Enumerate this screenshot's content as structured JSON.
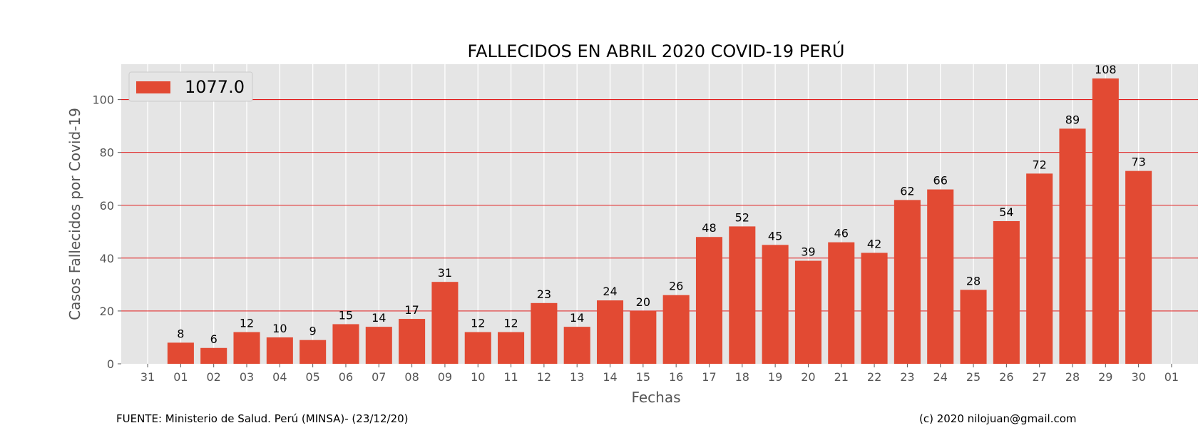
{
  "chart_data": {
    "type": "bar",
    "title": "FALLECIDOS EN ABRIL 2020 COVID-19 PERÚ",
    "xlabel": "Fechas",
    "ylabel": "Casos Fallecidos por Covid-19",
    "categories": [
      "01",
      "02",
      "03",
      "04",
      "05",
      "06",
      "07",
      "08",
      "09",
      "10",
      "11",
      "12",
      "13",
      "14",
      "15",
      "16",
      "17",
      "18",
      "19",
      "20",
      "21",
      "22",
      "23",
      "24",
      "25",
      "26",
      "27",
      "28",
      "29",
      "30"
    ],
    "x_ticks": [
      "31",
      "01",
      "02",
      "03",
      "04",
      "05",
      "06",
      "07",
      "08",
      "09",
      "10",
      "11",
      "12",
      "13",
      "14",
      "15",
      "16",
      "17",
      "18",
      "19",
      "20",
      "21",
      "22",
      "23",
      "24",
      "25",
      "26",
      "27",
      "28",
      "29",
      "30",
      "01"
    ],
    "series": [
      {
        "name": "1077.0",
        "values": [
          8,
          6,
          12,
          10,
          9,
          15,
          14,
          17,
          31,
          12,
          12,
          23,
          14,
          24,
          20,
          26,
          48,
          52,
          45,
          39,
          46,
          42,
          62,
          66,
          28,
          54,
          72,
          89,
          108,
          73
        ]
      }
    ],
    "y_ticks": [
      "0",
      "20",
      "40",
      "60",
      "80",
      "100"
    ],
    "ylim": [
      0,
      113.4
    ],
    "grid": true,
    "legend_position": "upper-left",
    "colors": {
      "bar": "#E24A33",
      "plot_background": "#E5E5E5",
      "vertical_grid": "#ffffff",
      "horizontal_grid": "#e00000"
    }
  },
  "footer": {
    "source": "FUENTE: Ministerio de Salud. Perú (MINSA)- (23/12/20)",
    "credit": "(c) 2020 nilojuan@gmail.com"
  }
}
